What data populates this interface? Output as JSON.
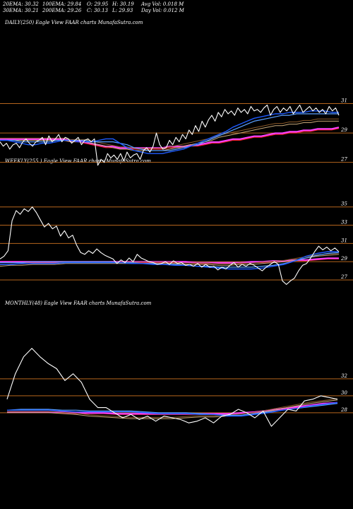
{
  "header": {
    "row1": [
      "20EMA: 30.32",
      "100EMA: 29.84",
      "O: 29.95",
      "H: 30.19",
      "Avg Vol: 0.018  M"
    ],
    "row2": [
      "30EMA: 30.21",
      "200EMA: 29.26",
      "C: 30.13",
      "L: 29.93",
      "Day Vol: 0.012  M"
    ]
  },
  "colors": {
    "price": "#ffffff",
    "gridline": "#b5651d",
    "ema20": "#1e5bff",
    "ema30": "#5aa0ff",
    "ema100": "#c8a878",
    "ema200": "#ff40ff",
    "ema_dark": "#8a5a2a",
    "ema_red": "#ff2020"
  },
  "chart_data": [
    {
      "type": "line",
      "title": "DAILY(250) Eagle   View  FAAR charts MunafaSutra.com",
      "yticks": [
        31,
        29,
        27
      ],
      "ylim": [
        26.6,
        31.6
      ],
      "price": [
        28.4,
        28.1,
        28.3,
        27.9,
        28.2,
        28.3,
        28.0,
        28.4,
        28.6,
        28.3,
        28.1,
        28.4,
        28.5,
        28.7,
        28.2,
        28.8,
        28.4,
        28.6,
        28.9,
        28.4,
        28.7,
        28.6,
        28.3,
        28.5,
        28.7,
        28.2,
        28.5,
        28.6,
        28.4,
        28.6,
        26.8,
        27.2,
        27.0,
        27.6,
        27.3,
        27.5,
        27.2,
        27.6,
        27.1,
        27.7,
        27.3,
        27.5,
        27.6,
        27.2,
        27.8,
        28.0,
        27.7,
        28.1,
        29.0,
        28.2,
        27.9,
        28.0,
        28.5,
        28.2,
        28.7,
        28.4,
        28.9,
        28.6,
        29.2,
        28.9,
        29.5,
        29.1,
        29.8,
        29.4,
        29.9,
        30.2,
        29.8,
        30.4,
        30.1,
        30.6,
        30.3,
        30.5,
        30.2,
        30.7,
        30.4,
        30.6,
        30.3,
        30.8,
        30.5,
        30.6,
        30.4,
        30.7,
        30.9,
        30.2,
        30.6,
        30.8,
        30.4,
        30.7,
        30.5,
        30.8,
        30.3,
        30.6,
        30.9,
        30.4,
        30.6,
        30.8,
        30.5,
        30.7,
        30.4,
        30.6,
        30.3,
        30.8,
        30.5,
        30.7,
        30.2
      ],
      "ema20": [
        28.5,
        28.5,
        28.4,
        28.3,
        28.2,
        28.2,
        28.3,
        28.3,
        28.4,
        28.5,
        28.5,
        28.4,
        28.4,
        28.4,
        28.5,
        28.6,
        28.6,
        28.3,
        28.0,
        27.8,
        27.7,
        27.6,
        27.6,
        27.6,
        27.7,
        27.8,
        27.9,
        28.1,
        28.3,
        28.5,
        28.7,
        28.9,
        29.1,
        29.4,
        29.6,
        29.8,
        30.0,
        30.1,
        30.2,
        30.3,
        30.3,
        30.4,
        30.4,
        30.4,
        30.5,
        30.5,
        30.5,
        30.4,
        30.4
      ],
      "ema30": [
        28.5,
        28.5,
        28.5,
        28.4,
        28.4,
        28.4,
        28.4,
        28.4,
        28.5,
        28.5,
        28.5,
        28.5,
        28.5,
        28.4,
        28.4,
        28.4,
        28.4,
        28.3,
        28.2,
        28.0,
        27.9,
        27.8,
        27.8,
        27.8,
        27.8,
        27.9,
        28.0,
        28.1,
        28.2,
        28.4,
        28.6,
        28.8,
        29.0,
        29.2,
        29.4,
        29.6,
        29.8,
        29.9,
        30.0,
        30.1,
        30.2,
        30.2,
        30.3,
        30.3,
        30.3,
        30.3,
        30.3,
        30.3,
        30.3
      ],
      "ema100": [
        28.5,
        28.5,
        28.5,
        28.5,
        28.5,
        28.5,
        28.5,
        28.5,
        28.5,
        28.5,
        28.4,
        28.4,
        28.4,
        28.3,
        28.2,
        28.1,
        28.0,
        27.9,
        27.9,
        27.8,
        27.8,
        27.8,
        27.8,
        27.8,
        27.9,
        28.0,
        28.1,
        28.2,
        28.3,
        28.4,
        28.5,
        28.7,
        28.8,
        28.9,
        29.0,
        29.1,
        29.2,
        29.3,
        29.4,
        29.5,
        29.5,
        29.6,
        29.6,
        29.7,
        29.7,
        29.8,
        29.8,
        29.8,
        29.8
      ],
      "ema200": [
        28.5,
        28.5,
        28.5,
        28.5,
        28.5,
        28.5,
        28.5,
        28.5,
        28.5,
        28.5,
        28.4,
        28.4,
        28.3,
        28.2,
        28.1,
        28.0,
        28.0,
        27.9,
        27.9,
        27.9,
        27.9,
        27.9,
        27.9,
        27.9,
        28.0,
        28.0,
        28.0,
        28.1,
        28.1,
        28.2,
        28.3,
        28.3,
        28.4,
        28.5,
        28.5,
        28.6,
        28.7,
        28.7,
        28.8,
        28.9,
        28.9,
        29.0,
        29.0,
        29.1,
        29.1,
        29.2,
        29.2,
        29.2,
        29.3
      ]
    },
    {
      "type": "line",
      "title": "WEEKLY(255            ) Eagle   View  FAAR charts MunafaSutra.com",
      "yticks": [
        35,
        33,
        31,
        29,
        27
      ],
      "ylim": [
        26.3,
        35.6
      ],
      "price": [
        29.3,
        29.6,
        30.2,
        33.5,
        34.6,
        34.2,
        34.8,
        34.5,
        35.0,
        34.4,
        33.6,
        32.8,
        33.2,
        32.6,
        32.9,
        31.8,
        32.4,
        31.6,
        31.9,
        30.8,
        30.0,
        29.8,
        30.2,
        29.9,
        30.4,
        30.0,
        29.7,
        29.5,
        29.3,
        28.8,
        29.2,
        28.9,
        29.4,
        29.0,
        29.8,
        29.4,
        29.2,
        29.0,
        28.9,
        28.7,
        28.8,
        29.0,
        28.7,
        29.1,
        28.8,
        28.9,
        28.6,
        28.7,
        28.5,
        28.8,
        28.4,
        28.7,
        28.4,
        28.5,
        28.1,
        28.4,
        28.2,
        28.6,
        28.9,
        28.4,
        28.7,
        28.5,
        28.8,
        28.6,
        28.3,
        28.0,
        28.4,
        28.7,
        29.0,
        28.7,
        26.9,
        26.5,
        26.9,
        27.2,
        28.0,
        28.6,
        28.8,
        29.4,
        30.1,
        30.7,
        30.3,
        30.6,
        30.2,
        30.5,
        30.1
      ],
      "ema20": [
        28.7,
        28.7,
        28.8,
        28.8,
        28.8,
        28.8,
        28.9,
        28.9,
        28.9,
        28.9,
        28.9,
        28.9,
        28.8,
        28.8,
        28.7,
        28.7,
        28.6,
        28.6,
        28.5,
        28.4,
        28.3,
        28.2,
        28.2,
        28.2,
        28.3,
        28.5,
        28.7,
        29.1,
        29.6,
        29.9,
        30.1,
        30.1
      ],
      "ema30": [
        28.9,
        28.9,
        28.9,
        29.0,
        29.0,
        29.0,
        29.0,
        29.0,
        29.0,
        29.0,
        29.0,
        28.9,
        28.9,
        28.8,
        28.8,
        28.7,
        28.7,
        28.6,
        28.5,
        28.5,
        28.4,
        28.4,
        28.4,
        28.4,
        28.5,
        28.6,
        28.8,
        29.1,
        29.4,
        29.7,
        29.9,
        30.0
      ],
      "ema100": [
        28.5,
        28.6,
        28.6,
        28.7,
        28.7,
        28.7,
        28.8,
        28.8,
        28.8,
        28.8,
        28.8,
        28.8,
        28.8,
        28.8,
        28.8,
        28.8,
        28.8,
        28.7,
        28.7,
        28.7,
        28.6,
        28.6,
        28.7,
        28.7,
        28.8,
        28.9,
        29.0,
        29.2,
        29.4,
        29.6,
        29.7,
        29.8
      ],
      "ema200": [
        28.9,
        28.9,
        28.9,
        28.9,
        28.9,
        28.9,
        28.9,
        28.9,
        28.9,
        28.9,
        28.9,
        28.9,
        28.9,
        28.9,
        28.9,
        28.9,
        28.9,
        28.9,
        28.8,
        28.8,
        28.8,
        28.8,
        28.8,
        28.9,
        28.9,
        29.0,
        29.0,
        29.1,
        29.1,
        29.2,
        29.3,
        29.3
      ]
    },
    {
      "type": "line",
      "title": "MONTHLY(48) Eagle   View  FAAR charts MunafaSutra.com",
      "yticks": [
        32,
        30,
        28
      ],
      "ylim": [
        26.4,
        36.0
      ],
      "price": [
        29.6,
        32.6,
        34.6,
        35.6,
        34.6,
        33.8,
        33.2,
        31.8,
        32.6,
        31.6,
        29.6,
        28.6,
        28.6,
        28.0,
        27.4,
        27.8,
        27.2,
        27.6,
        27.0,
        27.6,
        27.4,
        27.2,
        26.8,
        27.0,
        27.4,
        26.8,
        27.6,
        27.8,
        28.4,
        28.0,
        27.4,
        28.2,
        26.4,
        27.4,
        28.4,
        28.2,
        29.4,
        29.6,
        30.0,
        29.8,
        29.6
      ],
      "ema20": [
        28.3,
        28.3,
        28.3,
        28.3,
        28.2,
        28.1,
        28.1,
        28.1,
        28.1,
        28.1,
        28.0,
        27.9,
        27.9,
        27.9,
        27.8,
        27.8,
        27.6,
        27.6,
        27.8,
        28.0,
        28.3,
        28.5,
        28.8,
        29.0,
        29.2
      ],
      "ema30": [
        28.3,
        28.4,
        28.4,
        28.4,
        28.3,
        28.3,
        28.2,
        28.2,
        28.2,
        28.2,
        28.1,
        28.0,
        28.0,
        28.0,
        27.9,
        27.8,
        27.7,
        27.7,
        27.9,
        28.1,
        28.3,
        28.5,
        28.7,
        28.9,
        29.1
      ],
      "ema100": [
        28.0,
        28.0,
        28.0,
        28.0,
        27.9,
        27.8,
        27.6,
        27.5,
        27.4,
        27.3,
        27.3,
        27.3,
        27.3,
        27.4,
        27.5,
        27.5,
        27.6,
        27.7,
        27.9,
        28.2,
        28.5,
        28.8,
        29.1,
        29.3,
        29.5
      ],
      "ema200": [
        28.0,
        28.0,
        28.0,
        28.0,
        28.0,
        27.9,
        27.9,
        27.9,
        27.8,
        27.8,
        27.8,
        27.8,
        27.8,
        27.8,
        27.8,
        27.8,
        27.8,
        27.9,
        28.0,
        28.2,
        28.4,
        28.6,
        28.8,
        29.0,
        29.1
      ]
    }
  ]
}
